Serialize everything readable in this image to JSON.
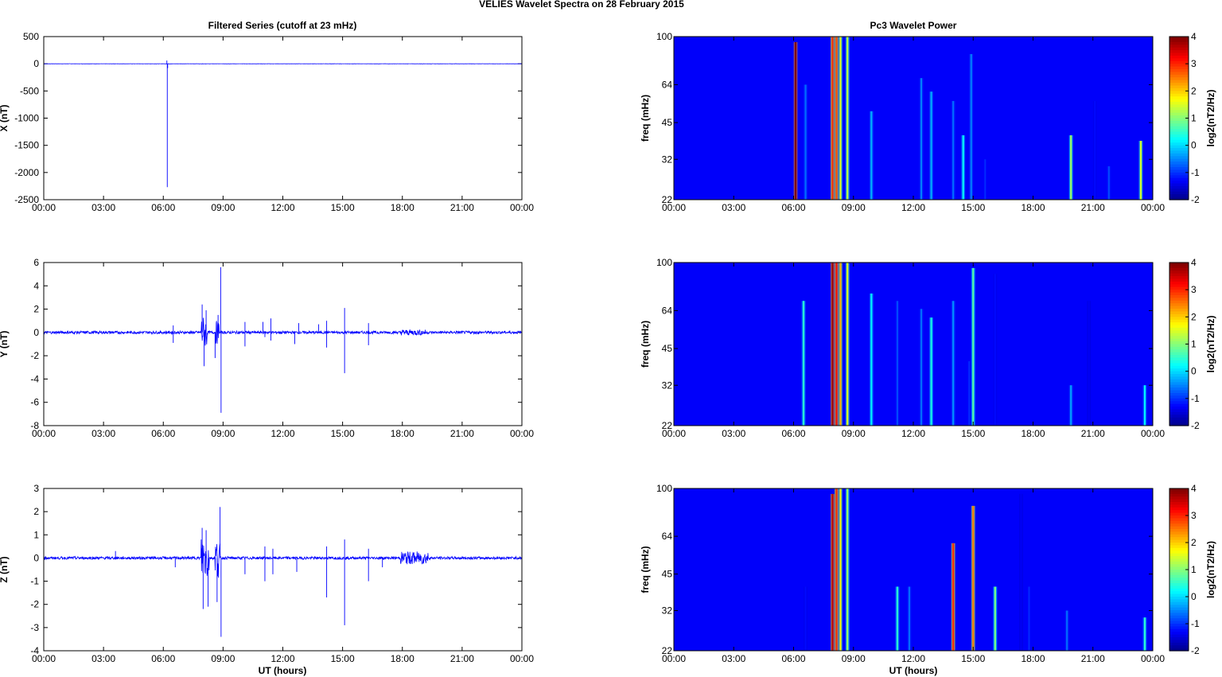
{
  "figure_title": "VELIES Wavelet Spectra on 28 February  2015",
  "left_title": "Filtered Series (cutoff at 23 mHz)",
  "right_title": "Pc3 Wavelet Power",
  "x_label": "UT (hours)",
  "chart_data": [
    {
      "type": "line",
      "panel": "left-1",
      "ylabel": "X (nT)",
      "xlim": [
        0,
        24
      ],
      "ylim": [
        -2500,
        500
      ],
      "xticks": [
        "00:00",
        "03:00",
        "06:00",
        "09:00",
        "12:00",
        "15:00",
        "18:00",
        "21:00",
        "00:00"
      ],
      "yticks": [
        500,
        0,
        -500,
        -1000,
        -1500,
        -2000,
        -2500
      ],
      "line_color": "#0000ff",
      "noise": 2,
      "spikes": [
        [
          6.2,
          -2270
        ],
        [
          6.18,
          60
        ],
        [
          6.22,
          -80
        ],
        [
          8.8,
          3
        ],
        [
          9.0,
          -3
        ]
      ]
    },
    {
      "type": "line",
      "panel": "left-2",
      "ylabel": "Y (nT)",
      "xlim": [
        0,
        24
      ],
      "ylim": [
        -8,
        6
      ],
      "xticks": [
        "00:00",
        "03:00",
        "06:00",
        "09:00",
        "12:00",
        "15:00",
        "18:00",
        "21:00",
        "00:00"
      ],
      "yticks": [
        6,
        4,
        2,
        0,
        -2,
        -4,
        -6,
        -8
      ],
      "line_color": "#0000ff",
      "noise": 0.12,
      "bursts": [
        [
          7.9,
          8.2,
          1.4
        ],
        [
          8.6,
          8.8,
          1.0
        ],
        [
          17.9,
          19.2,
          0.25
        ]
      ],
      "spikes": [
        [
          6.5,
          -0.9
        ],
        [
          6.5,
          0.6
        ],
        [
          7.95,
          2.4
        ],
        [
          8.05,
          -2.9
        ],
        [
          8.15,
          1.9
        ],
        [
          8.6,
          -2.2
        ],
        [
          8.75,
          1.5
        ],
        [
          8.88,
          5.6
        ],
        [
          8.9,
          -6.9
        ],
        [
          10.1,
          -1.2
        ],
        [
          10.1,
          0.9
        ],
        [
          11.0,
          0.9
        ],
        [
          11.4,
          -0.7
        ],
        [
          11.4,
          1.2
        ],
        [
          12.6,
          -1.0
        ],
        [
          12.8,
          0.8
        ],
        [
          13.8,
          0.7
        ],
        [
          14.2,
          -1.3
        ],
        [
          14.2,
          1.0
        ],
        [
          15.1,
          2.1
        ],
        [
          15.1,
          -3.5
        ],
        [
          16.3,
          -1.1
        ],
        [
          16.3,
          0.8
        ],
        [
          11.1,
          -0.4
        ]
      ]
    },
    {
      "type": "line",
      "panel": "left-3",
      "ylabel": "Z (nT)",
      "xlim": [
        0,
        24
      ],
      "ylim": [
        -4,
        3
      ],
      "xticks": [
        "00:00",
        "03:00",
        "06:00",
        "09:00",
        "12:00",
        "15:00",
        "18:00",
        "21:00",
        "00:00"
      ],
      "yticks": [
        3,
        2,
        1,
        0,
        -1,
        -2,
        -3,
        -4
      ],
      "line_color": "#0000ff",
      "noise": 0.06,
      "bursts": [
        [
          7.9,
          8.3,
          1.0
        ],
        [
          8.6,
          8.85,
          0.9
        ],
        [
          17.9,
          19.3,
          0.28
        ]
      ],
      "spikes": [
        [
          3.6,
          0.3
        ],
        [
          6.6,
          -0.4
        ],
        [
          7.95,
          1.3
        ],
        [
          8.0,
          -2.2
        ],
        [
          8.15,
          1.2
        ],
        [
          8.25,
          -2.1
        ],
        [
          8.7,
          -1.9
        ],
        [
          8.85,
          2.2
        ],
        [
          8.9,
          -3.4
        ],
        [
          10.1,
          -0.7
        ],
        [
          11.1,
          0.5
        ],
        [
          11.1,
          -1.0
        ],
        [
          11.5,
          0.4
        ],
        [
          11.5,
          -0.7
        ],
        [
          12.7,
          -0.6
        ],
        [
          14.2,
          0.5
        ],
        [
          14.2,
          -1.7
        ],
        [
          15.1,
          0.8
        ],
        [
          15.1,
          -2.9
        ],
        [
          16.3,
          0.4
        ],
        [
          16.3,
          -1.0
        ],
        [
          17.0,
          -0.4
        ]
      ]
    },
    {
      "type": "heatmap",
      "panel": "right-1",
      "ylabel": "freq (mHz)",
      "yscale": "log",
      "xlim": [
        0,
        24
      ],
      "ylim": [
        22,
        100
      ],
      "xticks": [
        "00:00",
        "03:00",
        "06:00",
        "09:00",
        "12:00",
        "15:00",
        "18:00",
        "21:00",
        "00:00"
      ],
      "yticks": [
        100,
        64,
        45,
        32,
        22
      ],
      "colorbar_label": "log2(nT2/Hz)",
      "clim": [
        -2,
        4
      ],
      "colorbar_ticks": [
        4,
        3,
        2,
        1,
        0,
        -1,
        -2
      ],
      "background_value": -2,
      "streaks": [
        [
          6.1,
          0.08,
          4.0,
          22,
          95
        ],
        [
          7.95,
          0.08,
          3.0,
          22,
          100
        ],
        [
          8.15,
          0.08,
          2.8,
          22,
          100
        ],
        [
          8.35,
          0.06,
          1.6,
          22,
          100
        ],
        [
          8.7,
          0.06,
          1.4,
          22,
          100
        ],
        [
          6.6,
          0.04,
          -0.6,
          22,
          64
        ],
        [
          9.9,
          0.04,
          -0.2,
          22,
          50
        ],
        [
          12.4,
          0.04,
          -0.5,
          22,
          68
        ],
        [
          12.9,
          0.04,
          -0.2,
          22,
          60
        ],
        [
          14.0,
          0.04,
          -0.6,
          22,
          55
        ],
        [
          14.5,
          0.04,
          0.3,
          22,
          40
        ],
        [
          14.9,
          0.04,
          -0.5,
          22,
          85
        ],
        [
          15.6,
          0.04,
          -1.0,
          22,
          32
        ],
        [
          19.9,
          0.06,
          1.2,
          22,
          40
        ],
        [
          21.8,
          0.04,
          -0.8,
          22,
          30
        ],
        [
          23.4,
          0.04,
          1.5,
          22,
          38
        ],
        [
          21.1,
          0.04,
          -1.2,
          22,
          55
        ]
      ]
    },
    {
      "type": "heatmap",
      "panel": "right-2",
      "ylabel": "freq (mHz)",
      "yscale": "log",
      "xlim": [
        0,
        24
      ],
      "ylim": [
        22,
        100
      ],
      "xticks": [
        "00:00",
        "03:00",
        "06:00",
        "09:00",
        "12:00",
        "15:00",
        "18:00",
        "21:00",
        "00:00"
      ],
      "yticks": [
        100,
        64,
        45,
        32,
        22
      ],
      "colorbar_label": "log2(nT2/Hz)",
      "clim": [
        -2,
        4
      ],
      "colorbar_ticks": [
        4,
        3,
        2,
        1,
        0,
        -1,
        -2
      ],
      "background_value": -2,
      "streaks": [
        [
          6.5,
          0.04,
          0.5,
          22,
          70
        ],
        [
          7.95,
          0.08,
          3.8,
          22,
          100
        ],
        [
          8.15,
          0.08,
          3.2,
          22,
          100
        ],
        [
          8.35,
          0.06,
          2.2,
          22,
          100
        ],
        [
          8.7,
          0.06,
          1.6,
          22,
          100
        ],
        [
          9.9,
          0.04,
          0.2,
          22,
          75
        ],
        [
          11.2,
          0.04,
          -0.8,
          22,
          70
        ],
        [
          12.4,
          0.04,
          -0.6,
          22,
          65
        ],
        [
          12.9,
          0.04,
          0.4,
          22,
          60
        ],
        [
          14.0,
          0.04,
          -0.4,
          22,
          70
        ],
        [
          14.8,
          0.04,
          -1.0,
          22,
          40
        ],
        [
          15.0,
          0.04,
          0.8,
          22,
          95
        ],
        [
          16.1,
          0.04,
          -1.2,
          22,
          90
        ],
        [
          19.9,
          0.05,
          -0.3,
          22,
          32
        ],
        [
          20.8,
          0.04,
          -1.3,
          22,
          70
        ],
        [
          23.6,
          0.04,
          0.2,
          22,
          32
        ]
      ]
    },
    {
      "type": "heatmap",
      "panel": "right-3",
      "ylabel": "freq (mHz)",
      "yscale": "log",
      "xlim": [
        0,
        24
      ],
      "ylim": [
        22,
        100
      ],
      "xticks": [
        "00:00",
        "03:00",
        "06:00",
        "09:00",
        "12:00",
        "15:00",
        "18:00",
        "21:00",
        "00:00"
      ],
      "yticks": [
        100,
        64,
        45,
        32,
        22
      ],
      "colorbar_label": "log2(nT2/Hz)",
      "clim": [
        -2,
        4
      ],
      "colorbar_ticks": [
        4,
        3,
        2,
        1,
        0,
        -1,
        -2
      ],
      "background_value": -2,
      "streaks": [
        [
          6.6,
          0.04,
          -1.2,
          22,
          40
        ],
        [
          7.95,
          0.08,
          3.6,
          22,
          95
        ],
        [
          8.15,
          0.08,
          3.0,
          22,
          100
        ],
        [
          8.35,
          0.06,
          1.8,
          22,
          100
        ],
        [
          8.7,
          0.06,
          1.2,
          22,
          100
        ],
        [
          11.2,
          0.04,
          0.5,
          22,
          40
        ],
        [
          11.8,
          0.04,
          -0.6,
          22,
          40
        ],
        [
          14.0,
          0.05,
          3.0,
          22,
          60
        ],
        [
          15.0,
          0.05,
          2.5,
          22,
          85
        ],
        [
          16.1,
          0.04,
          1.0,
          22,
          40
        ],
        [
          17.8,
          0.04,
          -1.0,
          22,
          40
        ],
        [
          19.7,
          0.04,
          -0.6,
          22,
          32
        ],
        [
          23.6,
          0.05,
          0.5,
          22,
          30
        ],
        [
          17.4,
          0.04,
          -1.3,
          22,
          95
        ]
      ]
    }
  ]
}
